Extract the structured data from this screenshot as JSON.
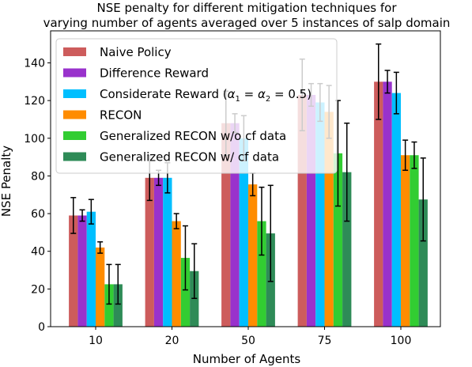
{
  "chart_data": {
    "type": "bar",
    "title_lines": [
      "NSE penalty for different mitigation techniques for",
      "varying number of agents averaged over 5 instances of salp domain"
    ],
    "xlabel": "Number of Agents",
    "ylabel": "NSE Penalty",
    "categories": [
      "10",
      "20",
      "50",
      "75",
      "100"
    ],
    "ylim": [
      0,
      157
    ],
    "yticks": [
      0,
      20,
      40,
      60,
      80,
      100,
      120,
      140
    ],
    "grid": false,
    "legend_position": "upper-left",
    "series": [
      {
        "name": "Naive Policy",
        "color": "#cd5c5c",
        "values": [
          59,
          79,
          108,
          123,
          130
        ],
        "errors": [
          9.5,
          12,
          17,
          19,
          20
        ]
      },
      {
        "name": "Difference Reward",
        "color": "#9932cc",
        "values": [
          59,
          79,
          108,
          123,
          130
        ],
        "errors": [
          3,
          4,
          5,
          6,
          6
        ]
      },
      {
        "name": "Considerate Reward (α1 = α2 = 0.5)",
        "name_main": "Considerate Reward (",
        "name_math": "α",
        "name_tail": " = 0.5)",
        "color": "#00bfff",
        "values": [
          61,
          79,
          100,
          119,
          124
        ],
        "errors": [
          6.5,
          8,
          12,
          10,
          11
        ]
      },
      {
        "name": "RECON",
        "color": "#ff8c00",
        "values": [
          42,
          56,
          75.5,
          114,
          91
        ],
        "errors": [
          3,
          4,
          6,
          14,
          8
        ]
      },
      {
        "name": "Generalized RECON w/o cf data",
        "color": "#32cd32",
        "values": [
          22.5,
          36.5,
          56,
          92,
          91
        ],
        "errors": [
          10.5,
          17,
          18,
          28,
          7
        ]
      },
      {
        "name": "Generalized RECON w/ cf data",
        "color": "#2e8b57",
        "values": [
          22.5,
          29.5,
          49.5,
          82,
          67.5
        ],
        "errors": [
          10.5,
          14.5,
          25.5,
          26,
          22
        ]
      }
    ]
  }
}
